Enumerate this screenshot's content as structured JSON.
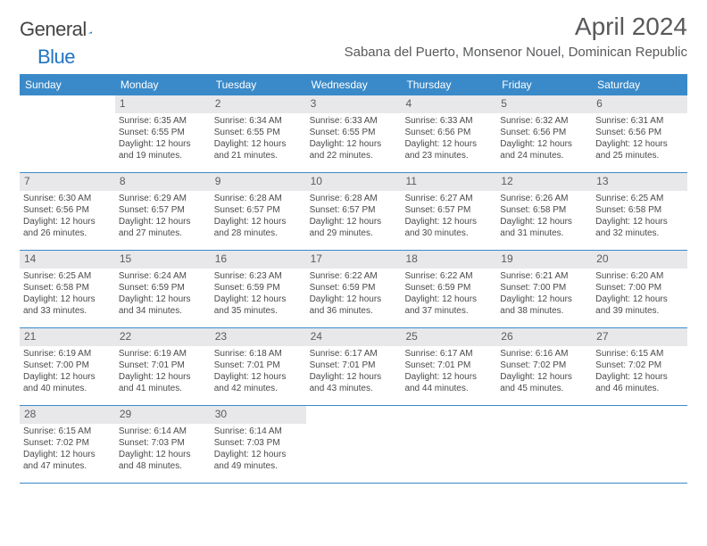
{
  "logo": {
    "word1": "General",
    "word2": "Blue"
  },
  "title": {
    "month": "April 2024",
    "location": "Sabana del Puerto, Monsenor Nouel, Dominican Republic"
  },
  "colors": {
    "header_bg": "#3a8ac9",
    "header_text": "#ffffff",
    "daynum_bg": "#e8e8ea",
    "text": "#4a4a4a",
    "accent": "#2175c2"
  },
  "day_names": [
    "Sunday",
    "Monday",
    "Tuesday",
    "Wednesday",
    "Thursday",
    "Friday",
    "Saturday"
  ],
  "weeks": [
    [
      {
        "num": "",
        "sunrise": "",
        "sunset": "",
        "daylight": ""
      },
      {
        "num": "1",
        "sunrise": "Sunrise: 6:35 AM",
        "sunset": "Sunset: 6:55 PM",
        "daylight": "Daylight: 12 hours and 19 minutes."
      },
      {
        "num": "2",
        "sunrise": "Sunrise: 6:34 AM",
        "sunset": "Sunset: 6:55 PM",
        "daylight": "Daylight: 12 hours and 21 minutes."
      },
      {
        "num": "3",
        "sunrise": "Sunrise: 6:33 AM",
        "sunset": "Sunset: 6:55 PM",
        "daylight": "Daylight: 12 hours and 22 minutes."
      },
      {
        "num": "4",
        "sunrise": "Sunrise: 6:33 AM",
        "sunset": "Sunset: 6:56 PM",
        "daylight": "Daylight: 12 hours and 23 minutes."
      },
      {
        "num": "5",
        "sunrise": "Sunrise: 6:32 AM",
        "sunset": "Sunset: 6:56 PM",
        "daylight": "Daylight: 12 hours and 24 minutes."
      },
      {
        "num": "6",
        "sunrise": "Sunrise: 6:31 AM",
        "sunset": "Sunset: 6:56 PM",
        "daylight": "Daylight: 12 hours and 25 minutes."
      }
    ],
    [
      {
        "num": "7",
        "sunrise": "Sunrise: 6:30 AM",
        "sunset": "Sunset: 6:56 PM",
        "daylight": "Daylight: 12 hours and 26 minutes."
      },
      {
        "num": "8",
        "sunrise": "Sunrise: 6:29 AM",
        "sunset": "Sunset: 6:57 PM",
        "daylight": "Daylight: 12 hours and 27 minutes."
      },
      {
        "num": "9",
        "sunrise": "Sunrise: 6:28 AM",
        "sunset": "Sunset: 6:57 PM",
        "daylight": "Daylight: 12 hours and 28 minutes."
      },
      {
        "num": "10",
        "sunrise": "Sunrise: 6:28 AM",
        "sunset": "Sunset: 6:57 PM",
        "daylight": "Daylight: 12 hours and 29 minutes."
      },
      {
        "num": "11",
        "sunrise": "Sunrise: 6:27 AM",
        "sunset": "Sunset: 6:57 PM",
        "daylight": "Daylight: 12 hours and 30 minutes."
      },
      {
        "num": "12",
        "sunrise": "Sunrise: 6:26 AM",
        "sunset": "Sunset: 6:58 PM",
        "daylight": "Daylight: 12 hours and 31 minutes."
      },
      {
        "num": "13",
        "sunrise": "Sunrise: 6:25 AM",
        "sunset": "Sunset: 6:58 PM",
        "daylight": "Daylight: 12 hours and 32 minutes."
      }
    ],
    [
      {
        "num": "14",
        "sunrise": "Sunrise: 6:25 AM",
        "sunset": "Sunset: 6:58 PM",
        "daylight": "Daylight: 12 hours and 33 minutes."
      },
      {
        "num": "15",
        "sunrise": "Sunrise: 6:24 AM",
        "sunset": "Sunset: 6:59 PM",
        "daylight": "Daylight: 12 hours and 34 minutes."
      },
      {
        "num": "16",
        "sunrise": "Sunrise: 6:23 AM",
        "sunset": "Sunset: 6:59 PM",
        "daylight": "Daylight: 12 hours and 35 minutes."
      },
      {
        "num": "17",
        "sunrise": "Sunrise: 6:22 AM",
        "sunset": "Sunset: 6:59 PM",
        "daylight": "Daylight: 12 hours and 36 minutes."
      },
      {
        "num": "18",
        "sunrise": "Sunrise: 6:22 AM",
        "sunset": "Sunset: 6:59 PM",
        "daylight": "Daylight: 12 hours and 37 minutes."
      },
      {
        "num": "19",
        "sunrise": "Sunrise: 6:21 AM",
        "sunset": "Sunset: 7:00 PM",
        "daylight": "Daylight: 12 hours and 38 minutes."
      },
      {
        "num": "20",
        "sunrise": "Sunrise: 6:20 AM",
        "sunset": "Sunset: 7:00 PM",
        "daylight": "Daylight: 12 hours and 39 minutes."
      }
    ],
    [
      {
        "num": "21",
        "sunrise": "Sunrise: 6:19 AM",
        "sunset": "Sunset: 7:00 PM",
        "daylight": "Daylight: 12 hours and 40 minutes."
      },
      {
        "num": "22",
        "sunrise": "Sunrise: 6:19 AM",
        "sunset": "Sunset: 7:01 PM",
        "daylight": "Daylight: 12 hours and 41 minutes."
      },
      {
        "num": "23",
        "sunrise": "Sunrise: 6:18 AM",
        "sunset": "Sunset: 7:01 PM",
        "daylight": "Daylight: 12 hours and 42 minutes."
      },
      {
        "num": "24",
        "sunrise": "Sunrise: 6:17 AM",
        "sunset": "Sunset: 7:01 PM",
        "daylight": "Daylight: 12 hours and 43 minutes."
      },
      {
        "num": "25",
        "sunrise": "Sunrise: 6:17 AM",
        "sunset": "Sunset: 7:01 PM",
        "daylight": "Daylight: 12 hours and 44 minutes."
      },
      {
        "num": "26",
        "sunrise": "Sunrise: 6:16 AM",
        "sunset": "Sunset: 7:02 PM",
        "daylight": "Daylight: 12 hours and 45 minutes."
      },
      {
        "num": "27",
        "sunrise": "Sunrise: 6:15 AM",
        "sunset": "Sunset: 7:02 PM",
        "daylight": "Daylight: 12 hours and 46 minutes."
      }
    ],
    [
      {
        "num": "28",
        "sunrise": "Sunrise: 6:15 AM",
        "sunset": "Sunset: 7:02 PM",
        "daylight": "Daylight: 12 hours and 47 minutes."
      },
      {
        "num": "29",
        "sunrise": "Sunrise: 6:14 AM",
        "sunset": "Sunset: 7:03 PM",
        "daylight": "Daylight: 12 hours and 48 minutes."
      },
      {
        "num": "30",
        "sunrise": "Sunrise: 6:14 AM",
        "sunset": "Sunset: 7:03 PM",
        "daylight": "Daylight: 12 hours and 49 minutes."
      },
      {
        "num": "",
        "sunrise": "",
        "sunset": "",
        "daylight": ""
      },
      {
        "num": "",
        "sunrise": "",
        "sunset": "",
        "daylight": ""
      },
      {
        "num": "",
        "sunrise": "",
        "sunset": "",
        "daylight": ""
      },
      {
        "num": "",
        "sunrise": "",
        "sunset": "",
        "daylight": ""
      }
    ]
  ]
}
